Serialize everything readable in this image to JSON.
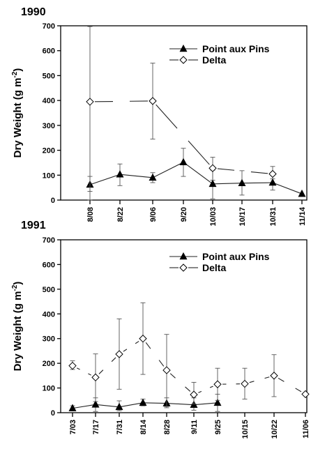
{
  "chart_data": [
    {
      "type": "line",
      "title": "1990",
      "ylabel": "Dry Weight (g m-2)",
      "ylim": [
        0,
        700
      ],
      "yticks": [
        0,
        100,
        200,
        300,
        400,
        500,
        600,
        700
      ],
      "categories": [
        "8/08",
        "8/22",
        "9/06",
        "9/20",
        "10/03",
        "10/17",
        "10/31",
        "11/14"
      ],
      "legend_position": "top-right",
      "series": [
        {
          "name": "Point aux Pins",
          "marker": "triangle",
          "values": [
            62,
            103,
            90,
            152,
            65,
            68,
            70,
            25
          ],
          "err_low": [
            35,
            58,
            70,
            95,
            5,
            20,
            40,
            null
          ],
          "err_high": [
            95,
            145,
            110,
            208,
            120,
            118,
            100,
            null
          ]
        },
        {
          "name": "Delta",
          "marker": "diamond",
          "values": [
            395,
            null,
            398,
            null,
            128,
            null,
            105,
            null
          ],
          "err_low": [
            0,
            null,
            245,
            null,
            80,
            null,
            85,
            null
          ],
          "err_high": [
            697,
            null,
            550,
            null,
            172,
            null,
            135,
            null
          ]
        }
      ]
    },
    {
      "type": "line",
      "title": "1991",
      "ylabel": "Dry Weight (g m-2)",
      "ylim": [
        0,
        700
      ],
      "yticks": [
        0,
        100,
        200,
        300,
        400,
        500,
        600,
        700
      ],
      "categories": [
        "7/03",
        "7/17",
        "7/31",
        "8/14",
        "8/28",
        "9/11",
        "9/25",
        "10/15",
        "10/22",
        "11/06"
      ],
      "legend_position": "top-right",
      "series": [
        {
          "name": "Point aux Pins",
          "marker": "triangle",
          "values": [
            18,
            33,
            23,
            40,
            38,
            32,
            40,
            null,
            null,
            null
          ],
          "err_low": [
            8,
            5,
            8,
            28,
            20,
            10,
            5,
            null,
            null,
            null
          ],
          "err_high": [
            28,
            60,
            48,
            55,
            60,
            60,
            75,
            null,
            null,
            null
          ]
        },
        {
          "name": "Delta",
          "marker": "diamond",
          "values": [
            190,
            143,
            237,
            300,
            172,
            73,
            115,
            117,
            150,
            75
          ],
          "err_low": [
            175,
            45,
            95,
            155,
            25,
            35,
            50,
            55,
            65,
            null
          ],
          "err_high": [
            210,
            238,
            380,
            445,
            317,
            123,
            180,
            180,
            235,
            null
          ]
        }
      ]
    }
  ]
}
